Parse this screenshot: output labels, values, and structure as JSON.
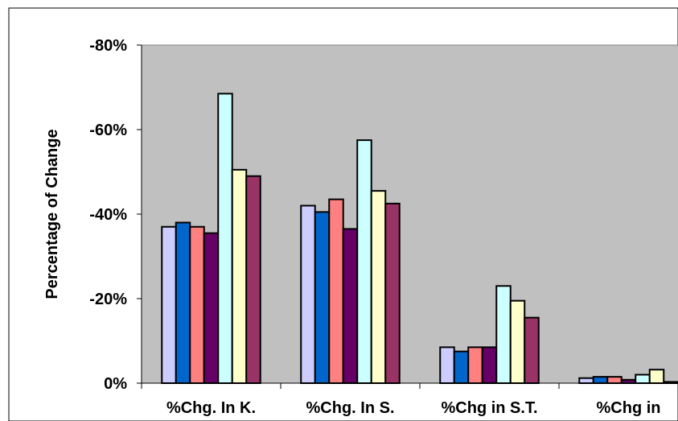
{
  "chart_data": {
    "type": "bar",
    "title": "",
    "xlabel": "",
    "ylabel": "Percentage of Change",
    "ylim": [
      0,
      -80
    ],
    "yticks": [
      0,
      -20,
      -40,
      -60,
      -80
    ],
    "ytick_labels": [
      "0%",
      "-20%",
      "-40%",
      "-60%",
      "-80%"
    ],
    "categories": [
      "%Chg. In K.",
      "%Chg. In S.",
      "%Chg in S.T.",
      "%Chg in"
    ],
    "series": [
      {
        "color": "#ccccff",
        "values": [
          -37,
          -42,
          -8.5,
          -1.2
        ]
      },
      {
        "color": "#0066cc",
        "values": [
          -38,
          -40.5,
          -7.5,
          -1.5
        ]
      },
      {
        "color": "#ff8080",
        "values": [
          -37,
          -43.5,
          -8.5,
          -1.5
        ]
      },
      {
        "color": "#660066",
        "values": [
          -35.5,
          -36.5,
          -8.5,
          -0.8
        ]
      },
      {
        "color": "#ccffff",
        "values": [
          -68.5,
          -57.5,
          -23,
          -2
        ]
      },
      {
        "color": "#ffffcc",
        "values": [
          -50.5,
          -45.5,
          -19.5,
          -3.2
        ]
      },
      {
        "color": "#993366",
        "values": [
          -49,
          -42.5,
          -15.5,
          -0.3
        ]
      }
    ],
    "plot_background": "#c0c0c0",
    "grid": false,
    "legend": "none"
  }
}
